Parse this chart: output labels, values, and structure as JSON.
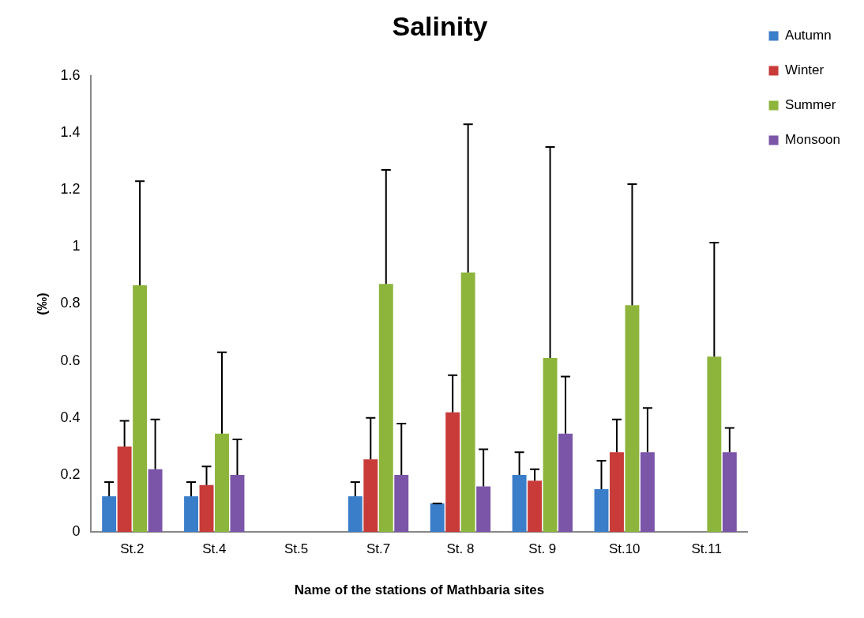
{
  "chart_data": {
    "type": "bar",
    "title": "Salinity",
    "xlabel": "Name of the stations of Mathbaria sites",
    "ylabel": "(‰)",
    "categories": [
      "St.2",
      "St.4",
      "St.5",
      "St.7",
      "St. 8",
      "St. 9",
      "St.10",
      "St.11"
    ],
    "series": [
      {
        "name": "Autumn",
        "color": "#3a7dc9",
        "values": [
          0.125,
          0.125,
          0,
          0.125,
          0.1,
          0.2,
          0.15,
          0
        ],
        "errors": [
          [
            0.125,
            0.175
          ],
          [
            0.125,
            0.175
          ],
          null,
          [
            0.125,
            0.175
          ],
          [
            0.1,
            0.1
          ],
          [
            0.2,
            0.28
          ],
          [
            0.15,
            0.25
          ],
          null
        ]
      },
      {
        "name": "Winter",
        "color": "#c83b38",
        "values": [
          0.3,
          0.165,
          0,
          0.255,
          0.42,
          0.18,
          0.28,
          0
        ],
        "errors": [
          [
            0.3,
            0.39
          ],
          [
            0.165,
            0.23
          ],
          null,
          [
            0.255,
            0.4
          ],
          [
            0.42,
            0.55
          ],
          [
            0.18,
            0.22
          ],
          [
            0.28,
            0.395
          ],
          null
        ]
      },
      {
        "name": "Summer",
        "color": "#8db53c",
        "values": [
          0.865,
          0.345,
          0,
          0.87,
          0.91,
          0.61,
          0.795,
          0.615
        ],
        "errors": [
          [
            0.865,
            1.23
          ],
          [
            0.345,
            0.63
          ],
          null,
          [
            0.87,
            1.27
          ],
          [
            0.91,
            1.43
          ],
          [
            0.61,
            1.35
          ],
          [
            0.795,
            1.22
          ],
          [
            0.615,
            1.015
          ]
        ]
      },
      {
        "name": "Monsoon",
        "color": "#7a55a8",
        "values": [
          0.22,
          0.2,
          0,
          0.2,
          0.16,
          0.345,
          0.28,
          0.28
        ],
        "errors": [
          [
            0.22,
            0.395
          ],
          [
            0.2,
            0.325
          ],
          null,
          [
            0.2,
            0.38
          ],
          [
            0.16,
            0.29
          ],
          [
            0.345,
            0.545
          ],
          [
            0.28,
            0.435
          ],
          [
            0.28,
            0.365
          ]
        ]
      }
    ],
    "ylim": [
      0,
      1.6
    ],
    "yticks": [
      0,
      0.2,
      0.4,
      0.6,
      0.8,
      1,
      1.2,
      1.4,
      1.6
    ],
    "grid": false,
    "legend": "top right"
  }
}
